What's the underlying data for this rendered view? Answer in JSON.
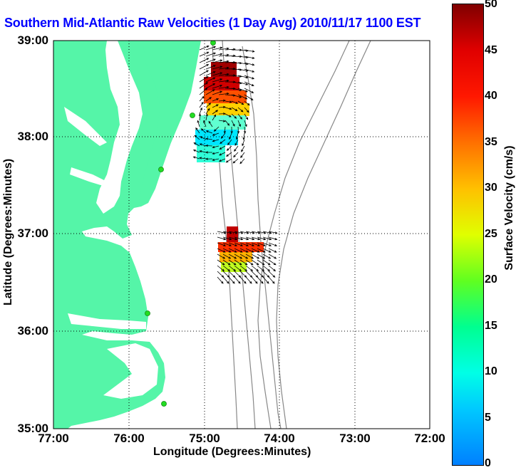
{
  "title": "Southern Mid-Atlantic Raw Velocities (1 Day Avg) 2010/11/17 1100 EST",
  "axes": {
    "xlabel": "Longitude (Degrees:Minutes)",
    "ylabel": "Latitude (Degrees:Minutes)",
    "xticks": [
      "77:00",
      "76:00",
      "75:00",
      "74:00",
      "73:00",
      "72:00"
    ],
    "yticks": [
      "39:00",
      "38:00",
      "37:00",
      "36:00",
      "35:00"
    ],
    "grid": "dotted"
  },
  "colorbar": {
    "label": "Surface Velocity (cm/s)",
    "ticks": [
      "50",
      "45",
      "40",
      "35",
      "30",
      "25",
      "20",
      "15",
      "10",
      "5",
      "0"
    ],
    "min": 0,
    "max": 50
  },
  "colors": {
    "land": "#55f5a8",
    "water": "#ffffff",
    "title": "#0000ff",
    "station": "#22dd22",
    "contour": "#888888"
  }
}
